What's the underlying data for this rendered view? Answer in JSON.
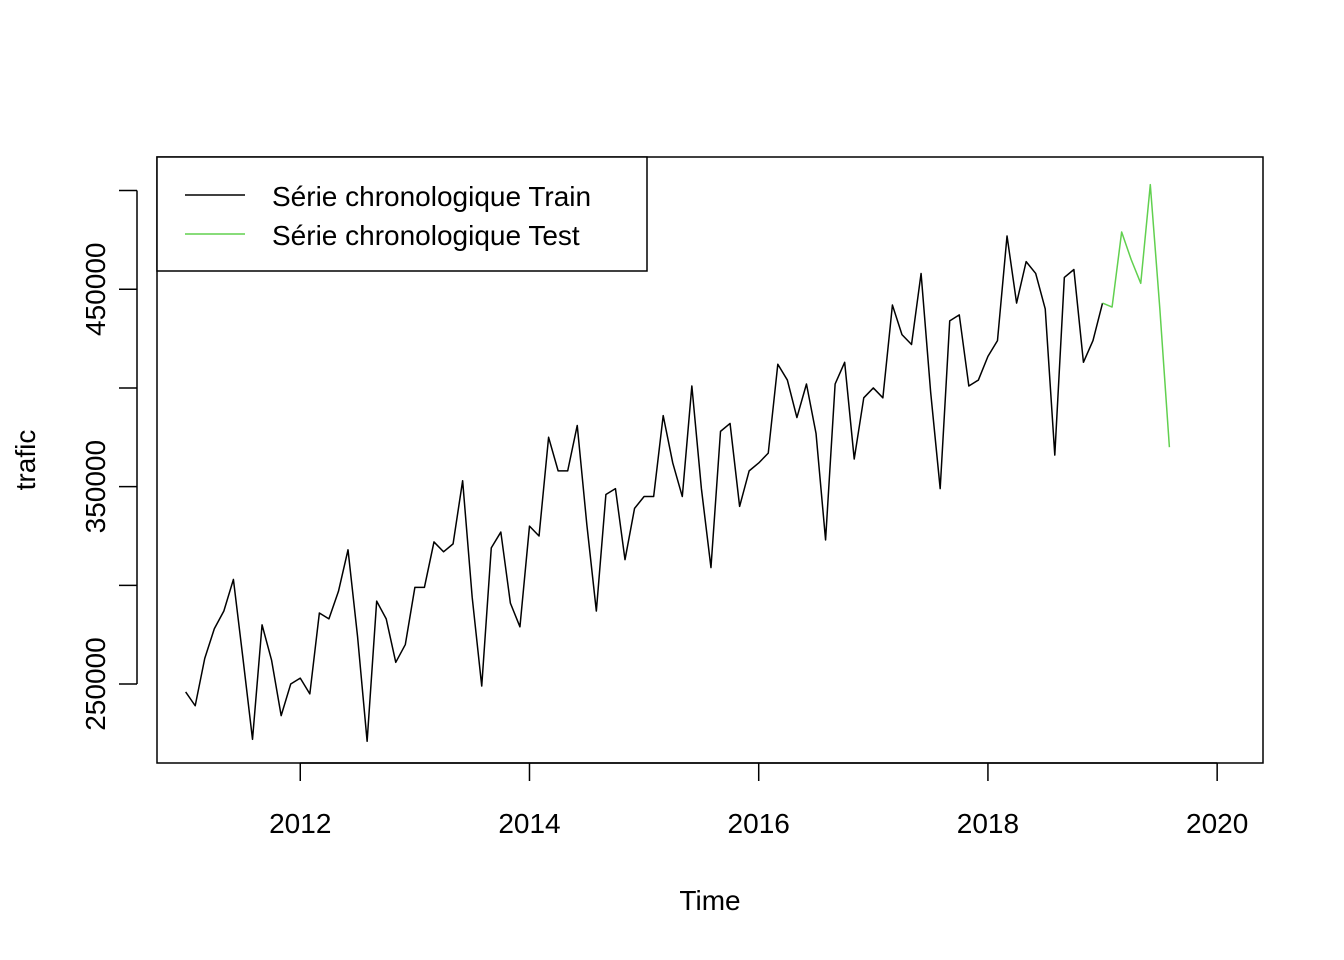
{
  "chart_data": {
    "type": "line",
    "title": "",
    "xlabel": "Time",
    "ylabel": "trafic",
    "xlim": [
      2010.75,
      2020.4
    ],
    "ylim": [
      210000,
      517000
    ],
    "x_ticks": [
      2012,
      2014,
      2016,
      2018,
      2020
    ],
    "x_tick_labels": [
      "2012",
      "2014",
      "2016",
      "2018",
      "2020"
    ],
    "y_ticks": [
      200000,
      250000,
      300000,
      350000,
      400000,
      450000,
      500000
    ],
    "y_tick_labels": [
      "",
      "250000",
      "",
      "350000",
      "",
      "450000",
      ""
    ],
    "grid": false,
    "legend_position": "top-left",
    "series": [
      {
        "name": "Série chronologique Train",
        "color": "#000000",
        "start": 2011.0,
        "step": 0.08333333,
        "values": [
          246000,
          239000,
          263000,
          278000,
          287000,
          303000,
          263000,
          222000,
          280000,
          262000,
          234000,
          250000,
          253000,
          245000,
          286000,
          283000,
          297000,
          318000,
          274000,
          221000,
          292000,
          283000,
          261000,
          270000,
          299000,
          299000,
          322000,
          317000,
          321000,
          353000,
          294000,
          249000,
          319000,
          327000,
          291000,
          279000,
          330000,
          325000,
          375000,
          358000,
          358000,
          381000,
          331000,
          287000,
          346000,
          349000,
          313000,
          339000,
          345000,
          345000,
          386000,
          362000,
          345000,
          401000,
          349000,
          309000,
          378000,
          382000,
          340000,
          358000,
          362000,
          367000,
          412000,
          404000,
          385000,
          402000,
          377000,
          323000,
          402000,
          413000,
          364000,
          395000,
          400000,
          395000,
          442000,
          427000,
          422000,
          458000,
          398000,
          349000,
          434000,
          437000,
          401000,
          404000,
          416000,
          424000,
          477000,
          443000,
          464000,
          458000,
          440000,
          366000,
          456000,
          460000,
          413000,
          424000,
          443000
        ]
      },
      {
        "name": "Série chronologique Test",
        "color": "#61d04f",
        "start": 2019.0,
        "step": 0.08333333,
        "values": [
          443000,
          441000,
          479000,
          465000,
          453000,
          503000,
          440000,
          370000
        ]
      }
    ]
  }
}
